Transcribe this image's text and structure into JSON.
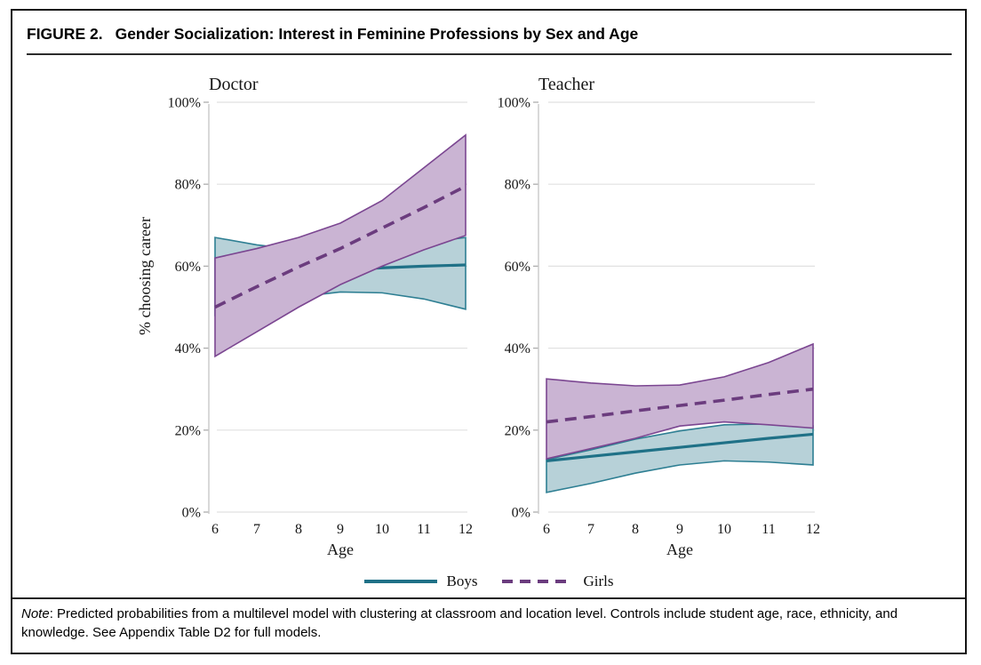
{
  "figure": {
    "label": "FIGURE 2.",
    "title": "Gender Socialization: Interest in Feminine Professions by Sex and Age"
  },
  "legend": {
    "boys": "Boys",
    "girls": "Girls"
  },
  "note": {
    "prefix": "Note",
    "body": ": Predicted probabilities from a multilevel model with clustering at classroom and location level. Controls include student age, race, ethnicity, and knowledge. See Appendix Table D2 for full models."
  },
  "colors": {
    "boys_line": "#1f7187",
    "boys_edge": "#2e7f93",
    "boys_band": "#b7d1d8",
    "girls_line": "#6b3c7e",
    "girls_edge": "#7b4691",
    "girls_band": "#cab4d3",
    "gridline": "#e1e1e1",
    "axis": "#c9c9c9",
    "tick": "#adadad"
  },
  "chart_data": [
    {
      "type": "line",
      "title": "Doctor",
      "xlabel": "Age",
      "ylabel": "% choosing career",
      "x": [
        6,
        7,
        8,
        9,
        10,
        11,
        12
      ],
      "xticks": [
        "6",
        "7",
        "8",
        "9",
        "10",
        "11",
        "12"
      ],
      "ylim": [
        0,
        100
      ],
      "yticks": [
        0,
        20,
        40,
        60,
        80,
        100
      ],
      "ytick_labels": [
        "0%",
        "20%",
        "40%",
        "60%",
        "80%",
        "100%"
      ],
      "grid": true,
      "series": [
        {
          "name": "Boys",
          "style": "solid",
          "values": [
            57,
            57.8,
            58.5,
            59.1,
            59.6,
            60,
            60.3
          ],
          "band_upper": [
            67,
            65.2,
            64,
            63.8,
            64.5,
            65.7,
            67
          ],
          "band_lower": [
            48,
            50.5,
            52.5,
            53.7,
            53.5,
            52,
            49.5
          ]
        },
        {
          "name": "Girls",
          "style": "dashed",
          "values": [
            50,
            55,
            59.8,
            64.3,
            69.3,
            74.3,
            79.5
          ],
          "band_upper": [
            62,
            64.3,
            67,
            70.5,
            76,
            84,
            92
          ],
          "band_lower": [
            38,
            44,
            50,
            55.5,
            60,
            64,
            67.5
          ]
        }
      ]
    },
    {
      "type": "line",
      "title": "Teacher",
      "xlabel": "Age",
      "ylabel": "",
      "x": [
        6,
        7,
        8,
        9,
        10,
        11,
        12
      ],
      "xticks": [
        "6",
        "7",
        "8",
        "9",
        "10",
        "11",
        "12"
      ],
      "ylim": [
        0,
        100
      ],
      "yticks": [
        0,
        20,
        40,
        60,
        80,
        100
      ],
      "ytick_labels": [
        "0%",
        "20%",
        "40%",
        "60%",
        "80%",
        "100%"
      ],
      "grid": true,
      "series": [
        {
          "name": "Boys",
          "style": "solid",
          "values": [
            12.5,
            13.6,
            14.7,
            15.8,
            16.9,
            18,
            19
          ],
          "band_upper": [
            12.8,
            15.2,
            17.8,
            19.8,
            21.3,
            21.5,
            21
          ],
          "band_lower": [
            4.8,
            7,
            9.5,
            11.5,
            12.5,
            12.2,
            11.5
          ]
        },
        {
          "name": "Girls",
          "style": "dashed",
          "values": [
            22,
            23.3,
            24.7,
            26,
            27.3,
            28.7,
            30
          ],
          "band_upper": [
            32.5,
            31.5,
            30.8,
            31,
            33,
            36.5,
            41
          ],
          "band_lower": [
            13,
            15.5,
            18,
            21,
            22,
            21.3,
            20.5
          ]
        }
      ]
    }
  ]
}
